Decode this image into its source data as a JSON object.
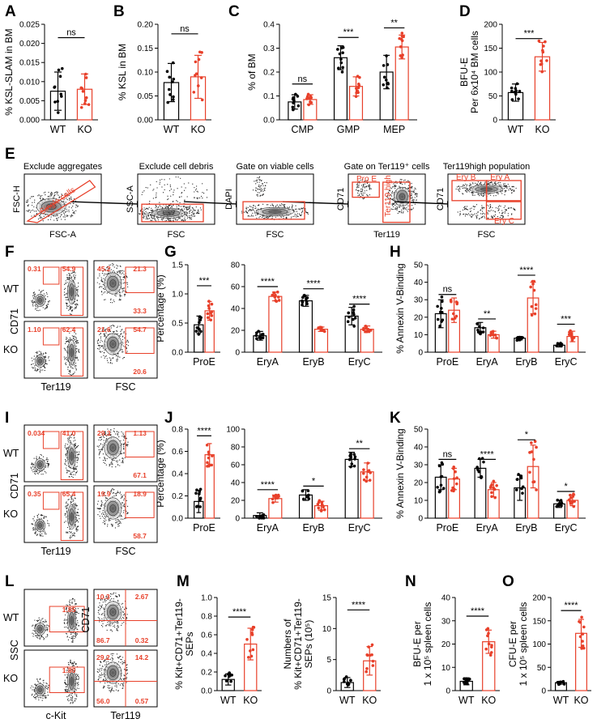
{
  "colors": {
    "wt": "#000000",
    "ko": "#e8402a"
  },
  "panel_letters": [
    "A",
    "B",
    "C",
    "D",
    "E",
    "F",
    "G",
    "H",
    "I",
    "J",
    "K",
    "L",
    "M",
    "N",
    "O"
  ],
  "chart_data": [
    {
      "id": "A",
      "type": "bar",
      "ylabel": "% KSL-SLAM in BM",
      "ylim": [
        0,
        0.025
      ],
      "yticks": [
        0.0,
        0.005,
        0.01,
        0.015,
        0.02,
        0.025
      ],
      "tick_labels": [
        "0.000",
        "0.005",
        "0.010",
        "0.015",
        "0.020",
        "0.025"
      ],
      "categories": [
        "WT",
        "KO"
      ],
      "values": [
        0.0075,
        0.008
      ],
      "errors": [
        0.005,
        0.004
      ],
      "sig": [
        {
          "text": "ns",
          "from": 0,
          "to": 1,
          "y": 0.0215
        }
      ]
    },
    {
      "id": "B",
      "type": "bar",
      "ylabel": "% KSL in BM",
      "ylim": [
        0,
        0.2
      ],
      "yticks": [
        0,
        0.05,
        0.1,
        0.15,
        0.2
      ],
      "tick_labels": [
        "0.00",
        "0.05",
        "0.10",
        "0.15",
        "0.20"
      ],
      "categories": [
        "WT",
        "KO"
      ],
      "values": [
        0.078,
        0.09
      ],
      "errors": [
        0.04,
        0.045
      ],
      "sig": [
        {
          "text": "ns",
          "from": 0,
          "to": 1,
          "y": 0.18
        }
      ]
    },
    {
      "id": "C",
      "type": "bar",
      "ylabel": "% of BM",
      "ylim": [
        0,
        0.4
      ],
      "yticks": [
        0,
        0.1,
        0.2,
        0.3,
        0.4
      ],
      "tick_labels": [
        "0.0",
        "0.1",
        "0.2",
        "0.3",
        "0.4"
      ],
      "categories": [
        "CMP",
        "GMP",
        "MEP"
      ],
      "values": [
        [
          0.075,
          0.085
        ],
        [
          0.26,
          0.14
        ],
        [
          0.2,
          0.305
        ]
      ],
      "errors": [
        [
          0.03,
          0.02
        ],
        [
          0.05,
          0.04
        ],
        [
          0.07,
          0.05
        ]
      ],
      "sig": [
        {
          "text": "ns",
          "group": 0,
          "y": 0.15
        },
        {
          "text": "***",
          "group": 1,
          "y": 0.345
        },
        {
          "text": "**",
          "group": 2,
          "y": 0.385
        }
      ]
    },
    {
      "id": "D",
      "type": "bar",
      "ylabel": "BFU-E\nPer 6x10⁴ BM cells",
      "ylim": [
        0,
        200
      ],
      "yticks": [
        0,
        50,
        100,
        150,
        200
      ],
      "tick_labels": [
        "0",
        "50",
        "100",
        "150",
        "200"
      ],
      "categories": [
        "WT",
        "KO"
      ],
      "values": [
        57,
        132
      ],
      "errors": [
        18,
        30
      ],
      "sig": [
        {
          "text": "***",
          "from": 0,
          "to": 1,
          "y": 170
        }
      ]
    },
    {
      "id": "G1",
      "type": "bar",
      "ylabel": "Percentage (%)",
      "ylim": [
        0,
        1.5
      ],
      "yticks": [
        0,
        0.5,
        1.0,
        1.5
      ],
      "tick_labels": [
        "0.0",
        "0.5",
        "1.0",
        "1.5"
      ],
      "categories": [
        "ProE"
      ],
      "values": [
        [
          0.47,
          0.71
        ]
      ],
      "errors": [
        [
          0.15,
          0.16
        ]
      ],
      "sig": [
        {
          "text": "***",
          "group": 0,
          "y": 1.14
        }
      ]
    },
    {
      "id": "G2",
      "type": "bar",
      "ylabel": "",
      "ylim": [
        0,
        80
      ],
      "yticks": [
        0,
        20,
        40,
        60,
        80
      ],
      "tick_labels": [
        "0",
        "20",
        "40",
        "60",
        "80"
      ],
      "categories": [
        "EryA",
        "EryB",
        "EryC"
      ],
      "values": [
        [
          15,
          51
        ],
        [
          47,
          21
        ],
        [
          33,
          21
        ]
      ],
      "errors": [
        [
          4,
          4
        ],
        [
          5,
          2
        ],
        [
          8,
          3
        ]
      ],
      "sig": [
        {
          "text": "****",
          "group": 0,
          "y": 60
        },
        {
          "text": "****",
          "group": 1,
          "y": 58
        },
        {
          "text": "****",
          "group": 2,
          "y": 44
        }
      ]
    },
    {
      "id": "H",
      "type": "bar",
      "ylabel": "% Annexin V-Binding",
      "ylim": [
        0,
        50
      ],
      "yticks": [
        0,
        10,
        20,
        30,
        40,
        50
      ],
      "tick_labels": [
        "0",
        "10",
        "20",
        "30",
        "40",
        "50"
      ],
      "categories": [
        "ProE",
        "EryA",
        "EryB",
        "EryC"
      ],
      "values": [
        [
          22,
          24
        ],
        [
          14,
          10
        ],
        [
          8,
          31
        ],
        [
          4,
          9
        ]
      ],
      "errors": [
        [
          8,
          7
        ],
        [
          3,
          2
        ],
        [
          1,
          9
        ],
        [
          1,
          3
        ]
      ],
      "sig": [
        {
          "text": "ns",
          "group": 0,
          "y": 33
        },
        {
          "text": "**",
          "group": 1,
          "y": 19
        },
        {
          "text": "****",
          "group": 2,
          "y": 44
        },
        {
          "text": "***",
          "group": 3,
          "y": 16
        }
      ]
    },
    {
      "id": "J1",
      "type": "bar",
      "ylabel": "Percentage (%)",
      "ylim": [
        0,
        0.8
      ],
      "yticks": [
        0,
        0.2,
        0.4,
        0.6,
        0.8
      ],
      "tick_labels": [
        "0.0",
        "0.2",
        "0.4",
        "0.6",
        "0.8"
      ],
      "categories": [
        "ProE"
      ],
      "values": [
        [
          0.15,
          0.57
        ]
      ],
      "errors": [
        [
          0.1,
          0.1
        ]
      ],
      "sig": [
        {
          "text": "****",
          "group": 0,
          "y": 0.74
        }
      ]
    },
    {
      "id": "J2",
      "type": "bar",
      "ylabel": "",
      "ylim": [
        0,
        100
      ],
      "yticks": [
        0,
        20,
        40,
        60,
        80,
        100
      ],
      "tick_labels": [
        "0",
        "20",
        "40",
        "60",
        "80",
        "100"
      ],
      "categories": [
        "EryA",
        "EryB",
        "EryC"
      ],
      "values": [
        [
          3,
          22
        ],
        [
          26,
          14
        ],
        [
          66,
          52
        ]
      ],
      "errors": [
        [
          3,
          4
        ],
        [
          6,
          5
        ],
        [
          8,
          10
        ]
      ],
      "sig": [
        {
          "text": "****",
          "group": 0,
          "y": 32
        },
        {
          "text": "*",
          "group": 1,
          "y": 36
        },
        {
          "text": "**",
          "group": 2,
          "y": 78
        }
      ]
    },
    {
      "id": "K",
      "type": "bar",
      "ylabel": "% Annexin V-Binding",
      "ylim": [
        0,
        50
      ],
      "yticks": [
        0,
        10,
        20,
        30,
        40,
        50
      ],
      "tick_labels": [
        "0",
        "10",
        "20",
        "30",
        "40",
        "50"
      ],
      "categories": [
        "ProE",
        "EryA",
        "EryB",
        "EryC"
      ],
      "values": [
        [
          23,
          22
        ],
        [
          28,
          16
        ],
        [
          17,
          29
        ],
        [
          8,
          10
        ]
      ],
      "errors": [
        [
          7,
          6
        ],
        [
          5,
          4
        ],
        [
          7,
          12
        ],
        [
          2,
          3
        ]
      ],
      "sig": [
        {
          "text": "ns",
          "group": 0,
          "y": 33
        },
        {
          "text": "****",
          "group": 1,
          "y": 33
        },
        {
          "text": "*",
          "group": 2,
          "y": 44
        },
        {
          "text": "*",
          "group": 3,
          "y": 15
        }
      ]
    },
    {
      "id": "M1",
      "type": "bar",
      "ylabel": "% Kit+CD71+Ter119-\nSEPs",
      "ylim": [
        0,
        1.0
      ],
      "yticks": [
        0,
        0.2,
        0.4,
        0.6,
        0.8,
        1.0
      ],
      "tick_labels": [
        "0.0",
        "0.2",
        "0.4",
        "0.6",
        "0.8",
        "1.0"
      ],
      "categories": [
        "WT",
        "KO"
      ],
      "values": [
        0.12,
        0.5
      ],
      "errors": [
        0.06,
        0.17
      ],
      "sig": [
        {
          "text": "****",
          "from": 0,
          "to": 1,
          "y": 0.79
        }
      ]
    },
    {
      "id": "M2",
      "type": "bar",
      "ylabel": "Numbers of\n% Kit+CD71+Ter119-\nSEPs (10⁵)",
      "ylim": [
        0,
        15
      ],
      "yticks": [
        0,
        5,
        10,
        15
      ],
      "tick_labels": [
        "0",
        "5",
        "10",
        "15"
      ],
      "categories": [
        "WT",
        "KO"
      ],
      "values": [
        1.3,
        4.8
      ],
      "errors": [
        0.8,
        2.3
      ],
      "sig": [
        {
          "text": "****",
          "from": 0,
          "to": 1,
          "y": 13
        }
      ]
    },
    {
      "id": "N",
      "type": "bar",
      "ylabel": "BFU-E per\n1 x 10⁵ spleen cells",
      "ylim": [
        0,
        40
      ],
      "yticks": [
        0,
        10,
        20,
        30,
        40
      ],
      "tick_labels": [
        "0",
        "10",
        "20",
        "30",
        "40"
      ],
      "categories": [
        "WT",
        "KO"
      ],
      "values": [
        4,
        21
      ],
      "errors": [
        1.5,
        5
      ],
      "sig": [
        {
          "text": "****",
          "from": 0,
          "to": 1,
          "y": 32
        }
      ]
    },
    {
      "id": "O",
      "type": "bar",
      "ylabel": "CFU-E per\n1 x 10⁵ spleen cells",
      "ylim": [
        0,
        200
      ],
      "yticks": [
        0,
        50,
        100,
        150,
        200
      ],
      "tick_labels": [
        "0",
        "50",
        "100",
        "150",
        "200"
      ],
      "categories": [
        "WT",
        "KO"
      ],
      "values": [
        17,
        123
      ],
      "errors": [
        3,
        30
      ],
      "sig": [
        {
          "text": "****",
          "from": 0,
          "to": 1,
          "y": 172
        }
      ]
    }
  ],
  "gating": {
    "titles": [
      "Exclude aggregates",
      "Exclude cell debris",
      "Gate on viable cells",
      "Gate on Ter119⁺ cells",
      "Ter119high population"
    ],
    "xlabels": [
      "FSC-A",
      "FSC",
      "FSC",
      "Ter119",
      "FSC"
    ],
    "ylabels": [
      "FSC-H",
      "SSC-A",
      "DAPI",
      "CD71",
      "CD71"
    ],
    "gates": [
      "Single cells",
      "Pro E",
      "Ter119 high",
      "Ery B",
      "Ery A",
      "Ery C"
    ]
  },
  "flow_F": {
    "rows": [
      "WT",
      "KO"
    ],
    "ylabel": "CD71",
    "xlabels": [
      "Ter119",
      "FSC"
    ],
    "left": [
      [
        "0.31",
        "54.9"
      ],
      [
        "1.10",
        "62.4"
      ]
    ],
    "right": [
      [
        "45.2",
        "21.3",
        "33.3"
      ],
      [
        "21.6",
        "54.7",
        "20.6"
      ]
    ]
  },
  "flow_I": {
    "rows": [
      "WT",
      "KO"
    ],
    "ylabel": "CD71",
    "xlabels": [
      "Ter119",
      "FSC"
    ],
    "left": [
      [
        "0.034",
        "41.0"
      ],
      [
        "0.35",
        "65.4"
      ]
    ],
    "right": [
      [
        "29.3",
        "1.13",
        "67.1"
      ],
      [
        "19.9",
        "18.9",
        "58.7"
      ]
    ]
  },
  "flow_L": {
    "rows": [
      "WT",
      "KO"
    ],
    "ylabel": "SSC",
    "ylabel2": "CD71",
    "xlabels": [
      "c-Kit",
      "Ter119"
    ],
    "left": [
      "1.85",
      "1.80"
    ],
    "right": [
      [
        "10.3",
        "2.67",
        "86.7",
        "0.32"
      ],
      [
        "29.2",
        "14.2",
        "56.0",
        "0.57"
      ]
    ]
  }
}
